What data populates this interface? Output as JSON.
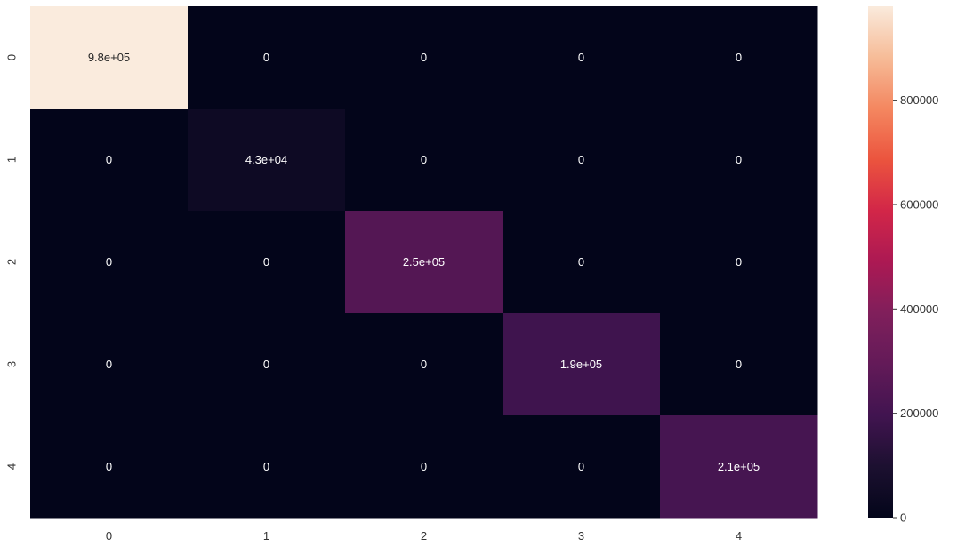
{
  "chart_data": {
    "type": "heatmap",
    "title": "",
    "xlabel": "",
    "ylabel": "",
    "x_categories": [
      "0",
      "1",
      "2",
      "3",
      "4"
    ],
    "y_categories": [
      "0",
      "1",
      "2",
      "3",
      "4"
    ],
    "values": [
      [
        980000,
        0,
        0,
        0,
        0
      ],
      [
        0,
        43000,
        0,
        0,
        0
      ],
      [
        0,
        0,
        250000,
        0,
        0
      ],
      [
        0,
        0,
        0,
        190000,
        0
      ],
      [
        0,
        0,
        0,
        0,
        210000
      ]
    ],
    "annotations": [
      [
        "9.8e+05",
        "0",
        "0",
        "0",
        "0"
      ],
      [
        "0",
        "4.3e+04",
        "0",
        "0",
        "0"
      ],
      [
        "0",
        "0",
        "2.5e+05",
        "0",
        "0"
      ],
      [
        "0",
        "0",
        "0",
        "1.9e+05",
        "0"
      ],
      [
        "0",
        "0",
        "0",
        "0",
        "2.1e+05"
      ]
    ],
    "colorbar": {
      "range": [
        0,
        980000
      ],
      "ticks": [
        0,
        200000,
        400000,
        600000,
        800000
      ],
      "tick_labels": [
        "0",
        "200000",
        "400000",
        "600000",
        "800000"
      ],
      "colormap": "rocket"
    },
    "grid": false,
    "legend": "colorbar-right"
  }
}
